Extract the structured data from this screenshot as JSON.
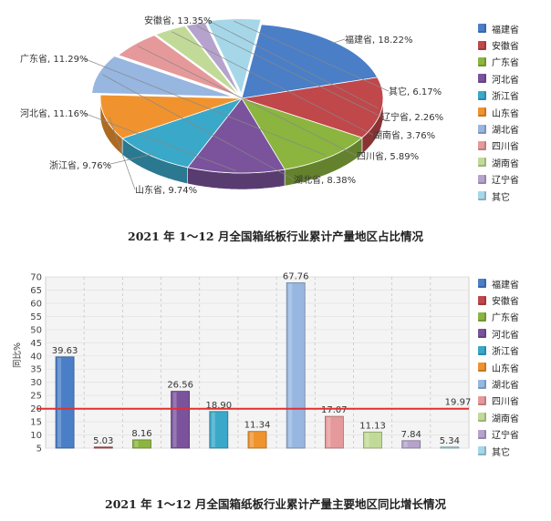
{
  "chart_data": [
    {
      "type": "pie",
      "title": "2021 年 1～12 月全国箱纸板行业累计产量地区占比情况",
      "categories": [
        "福建省",
        "安徽省",
        "广东省",
        "河北省",
        "浙江省",
        "山东省",
        "湖北省",
        "四川省",
        "湖南省",
        "辽宁省",
        "其它"
      ],
      "values": [
        18.22,
        13.35,
        11.29,
        11.16,
        9.76,
        9.74,
        8.38,
        5.89,
        3.76,
        2.26,
        6.17
      ],
      "labels": [
        "福建省, 18.22%",
        "安徽省, 13.35%",
        "广东省, 11.29%",
        "河北省, 11.16%",
        "浙江省, 9.76%",
        "山东省, 9.74%",
        "湖北省, 8.38%",
        "四川省, 5.89%",
        "湖南省, 3.76%",
        "辽宁省, 2.26%",
        "其它, 6.17%"
      ],
      "legend": [
        "福建省",
        "安徽省",
        "广东省",
        "河北省",
        "浙江省",
        "山东省",
        "湖北省",
        "四川省",
        "湖南省",
        "辽宁省",
        "其它"
      ],
      "legend_position": "right"
    },
    {
      "type": "bar",
      "title": "2021 年 1～12 月全国箱纸板行业累计产量主要地区同比增长情况",
      "categories": [
        "福建省",
        "安徽省",
        "广东省",
        "河北省",
        "浙江省",
        "山东省",
        "湖北省",
        "四川省",
        "湖南省",
        "辽宁省",
        "其它"
      ],
      "values": [
        39.63,
        5.03,
        8.16,
        26.56,
        18.9,
        11.34,
        67.76,
        17.07,
        11.13,
        7.84,
        5.34
      ],
      "value_labels": [
        "39.63",
        "5.03",
        "8.16",
        "26.56",
        "18.90",
        "11.34",
        "67.76",
        "17.07",
        "11.13",
        "7.84",
        "5.34"
      ],
      "reference_line": {
        "value": 19.97,
        "label": "19.97",
        "color": "#e03030"
      },
      "ylabel": "同比%",
      "ylim": [
        5,
        70
      ],
      "yticks": [
        "70",
        "65",
        "60",
        "55",
        "50",
        "45",
        "40",
        "35",
        "30",
        "25",
        "20",
        "15",
        "10",
        "5"
      ],
      "grid": true,
      "legend": [
        "福建省",
        "安徽省",
        "广东省",
        "河北省",
        "浙江省",
        "山东省",
        "湖北省",
        "四川省",
        "湖南省",
        "辽宁省",
        "其它"
      ],
      "legend_position": "right"
    }
  ],
  "colors": [
    "#4a7ec7",
    "#c0474a",
    "#8bb53f",
    "#7a539c",
    "#3aa8c8",
    "#f0932e",
    "#97b6e0",
    "#e6999a",
    "#c2da98",
    "#b6a3cd",
    "#a5d7e9"
  ]
}
